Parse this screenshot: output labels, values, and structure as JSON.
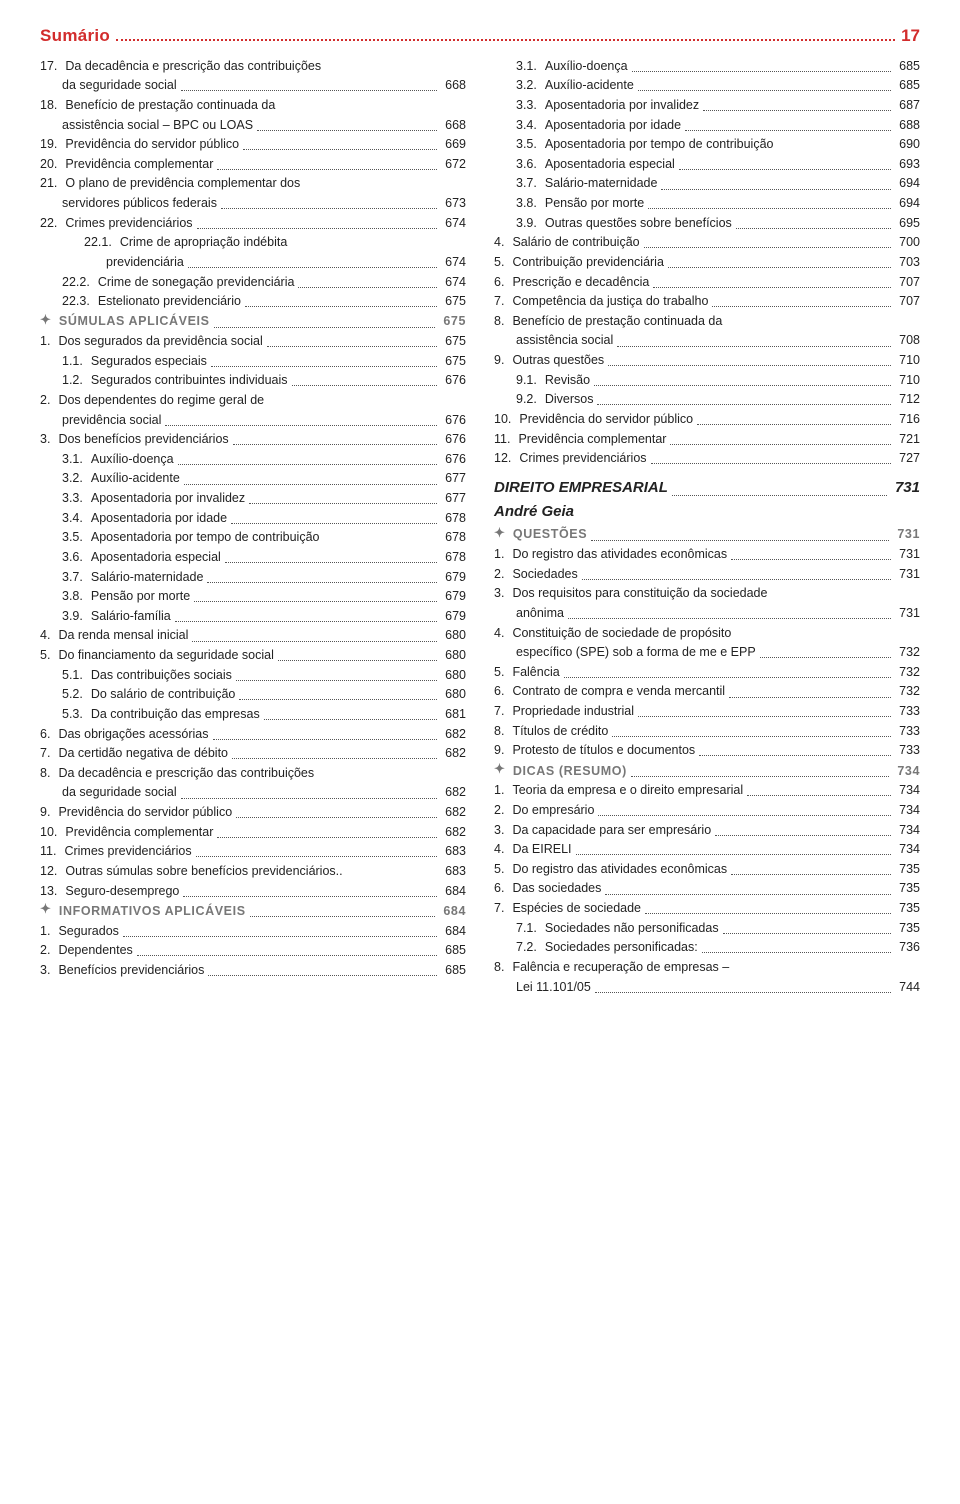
{
  "header": {
    "title": "Sumário",
    "page": "17"
  },
  "left": [
    {
      "n": "17.",
      "t": "Da decadência e prescrição das contribuições",
      "t2": "da seguridade social",
      "p": "668",
      "i": 0,
      "multi": true
    },
    {
      "n": "18.",
      "t": "Benefício de prestação continuada da",
      "t2": "assistência social – BPC ou LOAS",
      "p": "668",
      "i": 0,
      "multi": true
    },
    {
      "n": "19.",
      "t": "Previdência do servidor público",
      "p": "669",
      "i": 0
    },
    {
      "n": "20.",
      "t": "Previdência complementar",
      "p": "672",
      "i": 0
    },
    {
      "n": "21.",
      "t": "O plano de previdência complementar dos",
      "t2": "servidores públicos federais",
      "p": "673",
      "i": 0,
      "multi": true
    },
    {
      "n": "22.",
      "t": "Crimes previdenciários",
      "p": "674",
      "i": 0
    },
    {
      "n": "22.1.",
      "t": "Crime de apropriação indébita",
      "t2": "previdenciária",
      "p": "674",
      "i": 1,
      "multi": true
    },
    {
      "n": "22.2.",
      "t": "Crime de sonegação previdenciária",
      "p": "674",
      "i": 1
    },
    {
      "n": "22.3.",
      "t": "Estelionato previdenciário",
      "p": "675",
      "i": 1
    },
    {
      "sec": true,
      "t": "SÚMULAS APLICÁVEIS",
      "p": "675"
    },
    {
      "n": "1.",
      "t": "Dos segurados da previdência social",
      "p": "675",
      "i": 0
    },
    {
      "n": "1.1.",
      "t": "Segurados especiais",
      "p": "675",
      "i": 1
    },
    {
      "n": "1.2.",
      "t": "Segurados contribuintes individuais",
      "p": "676",
      "i": 1
    },
    {
      "n": "2.",
      "t": "Dos dependentes do regime geral de",
      "t2": "previdência social",
      "p": "676",
      "i": 0,
      "multi": true
    },
    {
      "n": "3.",
      "t": "Dos benefícios previdenciários",
      "p": "676",
      "i": 0
    },
    {
      "n": "3.1.",
      "t": "Auxílio-doença",
      "p": "676",
      "i": 1
    },
    {
      "n": "3.2.",
      "t": "Auxílio-acidente",
      "p": "677",
      "i": 1
    },
    {
      "n": "3.3.",
      "t": "Aposentadoria por invalidez",
      "p": "677",
      "i": 1
    },
    {
      "n": "3.4.",
      "t": "Aposentadoria por idade",
      "p": "678",
      "i": 1
    },
    {
      "n": "3.5.",
      "t": "Aposentadoria por tempo de contribuição",
      "p": "678",
      "i": 1,
      "nodots": true
    },
    {
      "n": "3.6.",
      "t": "Aposentadoria especial",
      "p": "678",
      "i": 1
    },
    {
      "n": "3.7.",
      "t": "Salário-maternidade",
      "p": "679",
      "i": 1
    },
    {
      "n": "3.8.",
      "t": "Pensão por morte",
      "p": "679",
      "i": 1
    },
    {
      "n": "3.9.",
      "t": "Salário-família",
      "p": "679",
      "i": 1
    },
    {
      "n": "4.",
      "t": "Da renda mensal inicial",
      "p": "680",
      "i": 0
    },
    {
      "n": "5.",
      "t": "Do financiamento da seguridade social",
      "p": "680",
      "i": 0
    },
    {
      "n": "5.1.",
      "t": "Das contribuições sociais",
      "p": "680",
      "i": 1
    },
    {
      "n": "5.2.",
      "t": "Do salário de contribuição",
      "p": "680",
      "i": 1
    },
    {
      "n": "5.3.",
      "t": "Da contribuição das empresas",
      "p": "681",
      "i": 1
    },
    {
      "n": "6.",
      "t": "Das obrigações acessórias",
      "p": "682",
      "i": 0
    },
    {
      "n": "7.",
      "t": "Da certidão negativa de débito",
      "p": "682",
      "i": 0
    },
    {
      "n": "8.",
      "t": "Da decadência e prescrição das contribuições",
      "t2": "da seguridade social",
      "p": "682",
      "i": 0,
      "multi": true
    },
    {
      "n": "9.",
      "t": "Previdência do servidor público",
      "p": "682",
      "i": 0
    },
    {
      "n": "10.",
      "t": "Previdência complementar",
      "p": "682",
      "i": 0
    },
    {
      "n": "11.",
      "t": "Crimes previdenciários",
      "p": "683",
      "i": 0
    },
    {
      "n": "12.",
      "t": "Outras súmulas sobre benefícios previdenciários",
      "p": "683",
      "i": 0,
      "shortdots": true
    },
    {
      "n": "13.",
      "t": "Seguro-desemprego",
      "p": "684",
      "i": 0
    },
    {
      "sec": true,
      "t": "INFORMATIVOS APLICÁVEIS",
      "p": "684"
    },
    {
      "n": "1.",
      "t": "Segurados",
      "p": "684",
      "i": 0
    },
    {
      "n": "2.",
      "t": "Dependentes",
      "p": "685",
      "i": 0
    },
    {
      "n": "3.",
      "t": "Benefícios previdenciários",
      "p": "685",
      "i": 0
    }
  ],
  "right": [
    {
      "n": "3.1.",
      "t": "Auxílio-doença",
      "p": "685",
      "i": 1
    },
    {
      "n": "3.2.",
      "t": "Auxílio-acidente",
      "p": "685",
      "i": 1
    },
    {
      "n": "3.3.",
      "t": "Aposentadoria por invalidez",
      "p": "687",
      "i": 1
    },
    {
      "n": "3.4.",
      "t": "Aposentadoria por idade",
      "p": "688",
      "i": 1
    },
    {
      "n": "3.5.",
      "t": "Aposentadoria por tempo de contribuição",
      "p": "690",
      "i": 1,
      "nodots": true
    },
    {
      "n": "3.6.",
      "t": "Aposentadoria especial",
      "p": "693",
      "i": 1
    },
    {
      "n": "3.7.",
      "t": "Salário-maternidade",
      "p": "694",
      "i": 1
    },
    {
      "n": "3.8.",
      "t": "Pensão por morte",
      "p": "694",
      "i": 1
    },
    {
      "n": "3.9.",
      "t": "Outras questões sobre benefícios",
      "p": "695",
      "i": 1
    },
    {
      "n": "4.",
      "t": "Salário de contribuição",
      "p": "700",
      "i": 0
    },
    {
      "n": "5.",
      "t": "Contribuição previdenciária",
      "p": "703",
      "i": 0
    },
    {
      "n": "6.",
      "t": "Prescrição e decadência",
      "p": "707",
      "i": 0
    },
    {
      "n": "7.",
      "t": "Competência da justiça do trabalho",
      "p": "707",
      "i": 0
    },
    {
      "n": "8.",
      "t": "Benefício de prestação continuada da",
      "t2": "assistência social",
      "p": "708",
      "i": 0,
      "multi": true
    },
    {
      "n": "9.",
      "t": "Outras questões",
      "p": "710",
      "i": 0
    },
    {
      "n": "9.1.",
      "t": "Revisão",
      "p": "710",
      "i": 1
    },
    {
      "n": "9.2.",
      "t": "Diversos",
      "p": "712",
      "i": 1
    },
    {
      "n": "10.",
      "t": "Previdência do servidor público",
      "p": "716",
      "i": 0
    },
    {
      "n": "11.",
      "t": "Previdência complementar",
      "p": "721",
      "i": 0
    },
    {
      "n": "12.",
      "t": "Crimes previdenciários",
      "p": "727",
      "i": 0
    },
    {
      "chapter": true,
      "t": "DIREITO EMPRESARIAL",
      "p": "731"
    },
    {
      "author": true,
      "t": "André Geia"
    },
    {
      "sec": true,
      "t": "QUESTÕES",
      "p": "731"
    },
    {
      "n": "1.",
      "t": "Do registro das atividades econômicas",
      "p": "731",
      "i": 0
    },
    {
      "n": "2.",
      "t": "Sociedades",
      "p": "731",
      "i": 0
    },
    {
      "n": "3.",
      "t": "Dos requisitos para constituição da sociedade",
      "t2": "anônima",
      "p": "731",
      "i": 0,
      "multi": true
    },
    {
      "n": "4.",
      "t": "Constituição de sociedade de propósito",
      "t2": "específico (SPE) sob a forma de me e EPP",
      "p": "732",
      "i": 0,
      "multi": true
    },
    {
      "n": "5.",
      "t": "Falência",
      "p": "732",
      "i": 0
    },
    {
      "n": "6.",
      "t": "Contrato de compra e venda mercantil",
      "p": "732",
      "i": 0
    },
    {
      "n": "7.",
      "t": "Propriedade industrial",
      "p": "733",
      "i": 0
    },
    {
      "n": "8.",
      "t": "Títulos de crédito",
      "p": "733",
      "i": 0
    },
    {
      "n": "9.",
      "t": "Protesto de títulos e documentos",
      "p": "733",
      "i": 0
    },
    {
      "sec": true,
      "t": "DICAS (RESUMO)",
      "p": "734"
    },
    {
      "n": "1.",
      "t": "Teoria da empresa e o direito empresarial",
      "p": "734",
      "i": 0
    },
    {
      "n": "2.",
      "t": "Do empresário",
      "p": "734",
      "i": 0
    },
    {
      "n": "3.",
      "t": "Da capacidade para ser empresário",
      "p": "734",
      "i": 0
    },
    {
      "n": "4.",
      "t": "Da EIRELI",
      "p": "734",
      "i": 0
    },
    {
      "n": "5.",
      "t": "Do registro das atividades econômicas",
      "p": "735",
      "i": 0
    },
    {
      "n": "6.",
      "t": "Das sociedades",
      "p": "735",
      "i": 0
    },
    {
      "n": "7.",
      "t": "Espécies de sociedade",
      "p": "735",
      "i": 0
    },
    {
      "n": "7.1.",
      "t": "Sociedades não personificadas",
      "p": "735",
      "i": 1
    },
    {
      "n": "7.2.",
      "t": "Sociedades personificadas:",
      "p": "736",
      "i": 1
    },
    {
      "n": "8.",
      "t": "Falência e recuperação de empresas –",
      "t2": "Lei 11.101/05",
      "p": "744",
      "i": 0,
      "multi": true
    }
  ]
}
